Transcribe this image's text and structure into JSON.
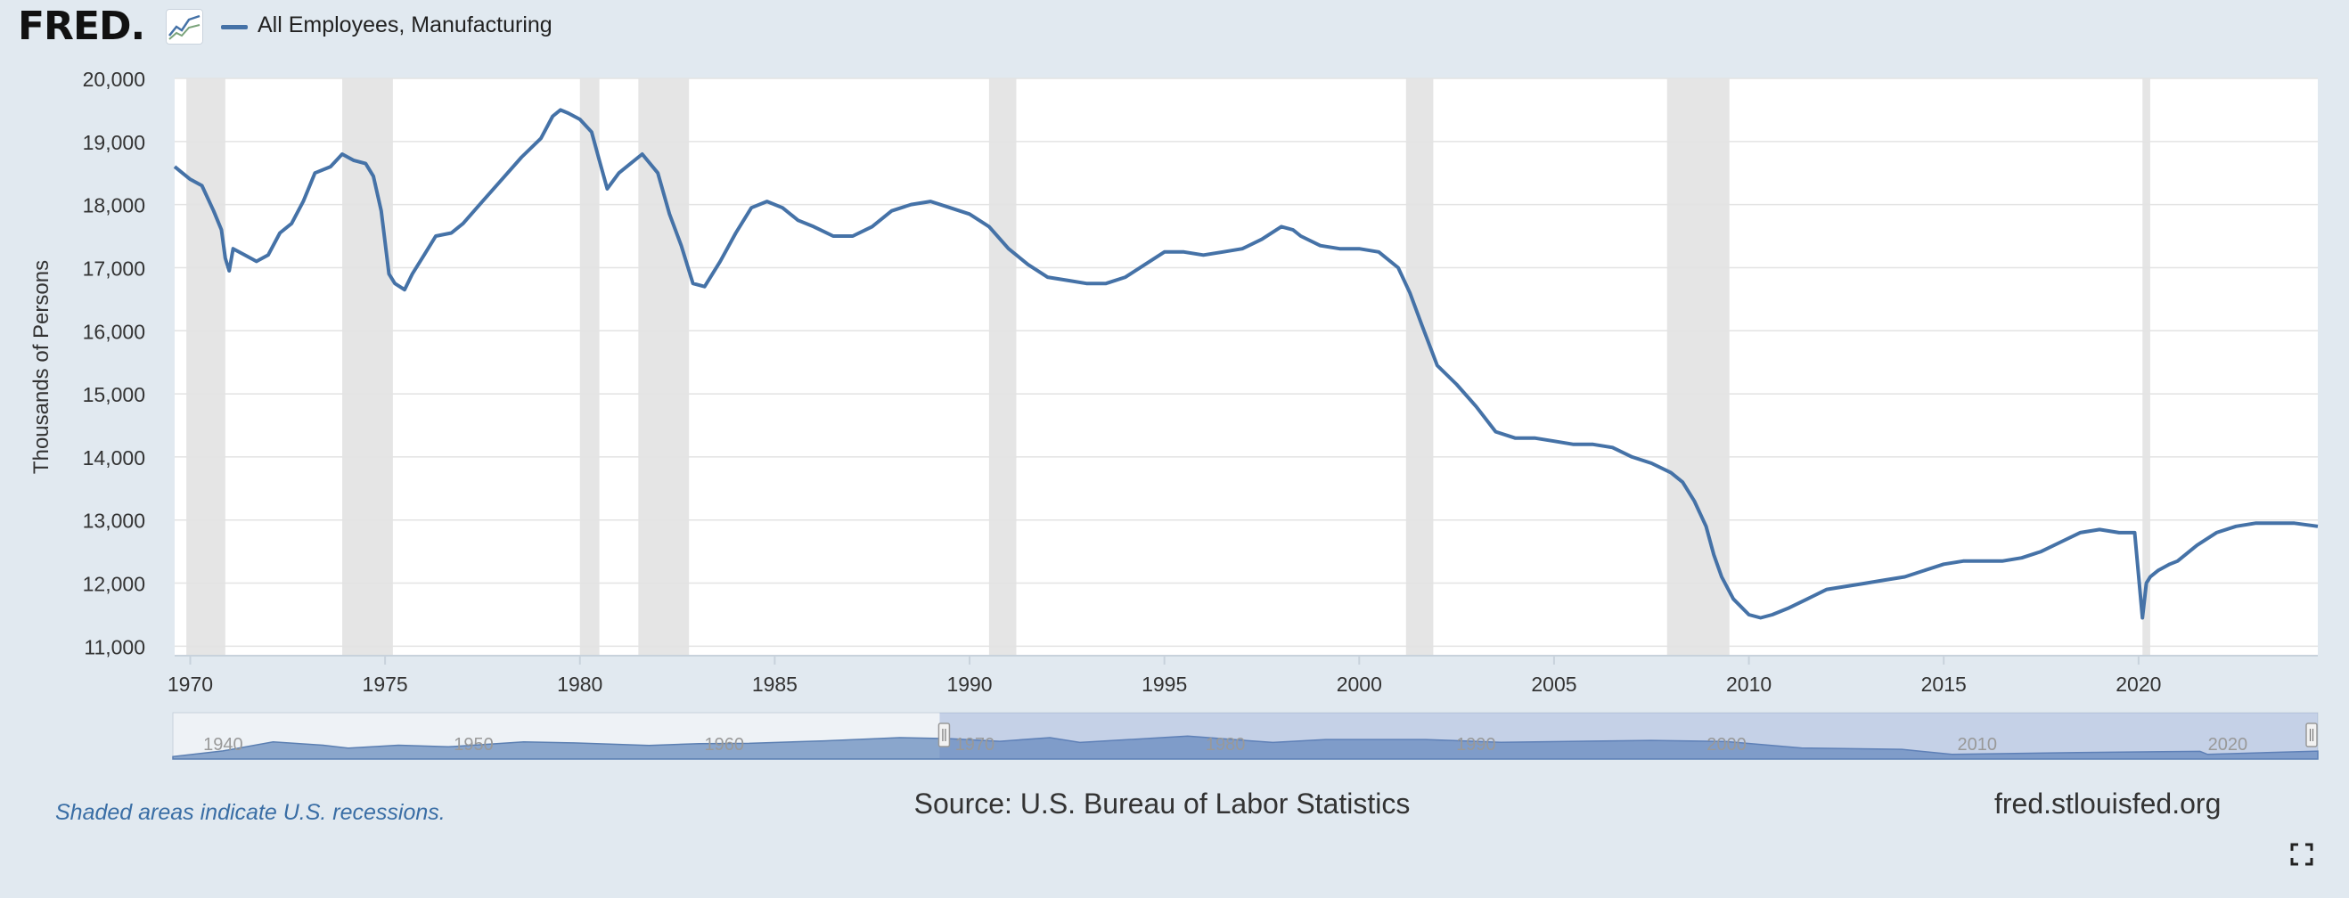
{
  "header": {
    "logo_text": "FRED",
    "logo_dot": ".",
    "logo_icon": "fred-chart-logo-icon",
    "legend_label": "All Employees, Manufacturing"
  },
  "footer": {
    "note": "Shaded areas indicate U.S. recessions.",
    "source": "Source: U.S. Bureau of Labor Statistics",
    "site": "fred.stlouisfed.org",
    "expand_icon": "fullscreen-icon"
  },
  "colors": {
    "background": "#e1e9f0",
    "plot_background": "#ffffff",
    "series": "#4572a7",
    "recession_shade": "#e5e5e5",
    "navigator_fill": "#8aa6cc",
    "navigator_line": "#5b7fb2"
  },
  "chart_data": {
    "type": "line",
    "title": "",
    "xlabel": "",
    "ylabel": "Thousands of Persons",
    "xlim": [
      1969.6,
      2024.6
    ],
    "ylim": [
      10850,
      20000
    ],
    "grid": true,
    "legend": "top-left",
    "y_ticks": [
      11000,
      12000,
      13000,
      14000,
      15000,
      16000,
      17000,
      18000,
      19000,
      20000
    ],
    "y_tick_labels": [
      "11,000",
      "12,000",
      "13,000",
      "14,000",
      "15,000",
      "16,000",
      "17,000",
      "18,000",
      "19,000",
      "20,000"
    ],
    "x_ticks": [
      1970,
      1975,
      1980,
      1985,
      1990,
      1995,
      2000,
      2005,
      2010,
      2015,
      2020
    ],
    "x_tick_labels": [
      "1970",
      "1975",
      "1980",
      "1985",
      "1990",
      "1995",
      "2000",
      "2005",
      "2010",
      "2015",
      "2020"
    ],
    "recessions": [
      [
        1969.9,
        1970.9
      ],
      [
        1973.9,
        1975.2
      ],
      [
        1980.0,
        1980.5
      ],
      [
        1981.5,
        1982.8
      ],
      [
        1990.5,
        1991.2
      ],
      [
        2001.2,
        2001.9
      ],
      [
        2007.9,
        2009.5
      ],
      [
        2020.1,
        2020.3
      ]
    ],
    "series": [
      {
        "name": "All Employees, Manufacturing",
        "x": [
          1969.6,
          1969.8,
          1970.0,
          1970.3,
          1970.6,
          1970.8,
          1970.9,
          1971.0,
          1971.1,
          1971.4,
          1971.7,
          1972.0,
          1972.3,
          1972.6,
          1972.9,
          1973.2,
          1973.6,
          1973.9,
          1974.2,
          1974.5,
          1974.7,
          1974.9,
          1975.1,
          1975.25,
          1975.5,
          1975.7,
          1976.0,
          1976.3,
          1976.7,
          1977.0,
          1977.5,
          1978.0,
          1978.5,
          1979.0,
          1979.3,
          1979.5,
          1979.7,
          1980.0,
          1980.3,
          1980.5,
          1980.7,
          1981.0,
          1981.3,
          1981.6,
          1982.0,
          1982.3,
          1982.6,
          1982.9,
          1983.2,
          1983.6,
          1984.0,
          1984.4,
          1984.8,
          1985.2,
          1985.6,
          1986.0,
          1986.5,
          1987.0,
          1987.5,
          1988.0,
          1988.5,
          1989.0,
          1989.5,
          1990.0,
          1990.5,
          1991.0,
          1991.5,
          1992.0,
          1992.5,
          1993.0,
          1993.5,
          1994.0,
          1994.5,
          1995.0,
          1995.5,
          1996.0,
          1996.5,
          1997.0,
          1997.5,
          1998.0,
          1998.3,
          1998.5,
          1999.0,
          1999.5,
          2000.0,
          2000.5,
          2001.0,
          2001.3,
          2001.6,
          2002.0,
          2002.5,
          2003.0,
          2003.5,
          2004.0,
          2004.5,
          2005.0,
          2005.5,
          2006.0,
          2006.5,
          2007.0,
          2007.5,
          2008.0,
          2008.3,
          2008.6,
          2008.9,
          2009.1,
          2009.3,
          2009.6,
          2010.0,
          2010.3,
          2010.6,
          2011.0,
          2011.5,
          2012.0,
          2012.5,
          2013.0,
          2013.5,
          2014.0,
          2014.5,
          2015.0,
          2015.5,
          2016.0,
          2016.5,
          2017.0,
          2017.5,
          2018.0,
          2018.5,
          2019.0,
          2019.5,
          2019.9,
          2020.1,
          2020.2,
          2020.3,
          2020.5,
          2020.8,
          2021.0,
          2021.5,
          2022.0,
          2022.5,
          2023.0,
          2023.5,
          2024.0,
          2024.6
        ],
        "values": [
          18600,
          18500,
          18400,
          18300,
          17900,
          17600,
          17150,
          16950,
          17300,
          17200,
          17100,
          17200,
          17550,
          17700,
          18050,
          18500,
          18600,
          18800,
          18700,
          18650,
          18450,
          17900,
          16900,
          16750,
          16650,
          16900,
          17200,
          17500,
          17550,
          17700,
          18050,
          18400,
          18750,
          19050,
          19400,
          19500,
          19450,
          19350,
          19150,
          18700,
          18250,
          18500,
          18650,
          18800,
          18500,
          17850,
          17350,
          16750,
          16700,
          17100,
          17550,
          17950,
          18050,
          17950,
          17750,
          17650,
          17500,
          17500,
          17650,
          17900,
          18000,
          18050,
          17950,
          17850,
          17650,
          17300,
          17050,
          16850,
          16800,
          16750,
          16750,
          16850,
          17050,
          17250,
          17250,
          17200,
          17250,
          17300,
          17450,
          17650,
          17600,
          17500,
          17350,
          17300,
          17300,
          17250,
          17000,
          16600,
          16100,
          15450,
          15150,
          14800,
          14400,
          14300,
          14300,
          14250,
          14200,
          14200,
          14150,
          14000,
          13900,
          13750,
          13600,
          13300,
          12900,
          12450,
          12100,
          11750,
          11500,
          11450,
          11500,
          11600,
          11750,
          11900,
          11950,
          12000,
          12050,
          12100,
          12200,
          12300,
          12350,
          12350,
          12350,
          12400,
          12500,
          12650,
          12800,
          12850,
          12800,
          12800,
          11450,
          12000,
          12100,
          12200,
          12300,
          12350,
          12600,
          12800,
          12900,
          12950,
          12950,
          12950,
          12900
        ]
      }
    ],
    "navigator": {
      "x_labels": [
        "1940",
        "1950",
        "1960",
        "1970",
        "1980",
        "1990",
        "2000",
        "2010",
        "2020"
      ],
      "selected_range": [
        1969.6,
        2024.6
      ]
    }
  }
}
